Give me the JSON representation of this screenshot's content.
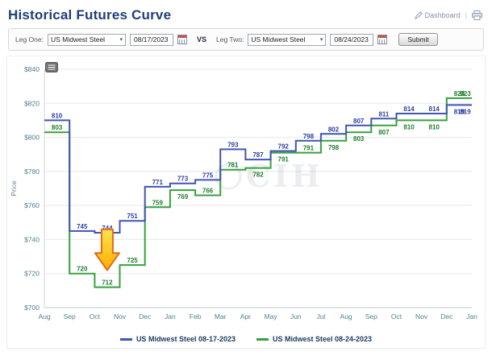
{
  "header": {
    "title": "Historical Futures Curve",
    "dashboard_label": "Dashboard"
  },
  "controls": {
    "leg_one_label": "Leg One:",
    "leg_one_symbol": "US Midwest Steel",
    "leg_one_date": "08/17/2023",
    "vs_label": "VS",
    "leg_two_label": "Leg Two:",
    "leg_two_symbol": "US Midwest Steel",
    "leg_two_date": "08/24/2023",
    "submit_label": "Submit"
  },
  "chart_data": {
    "type": "line",
    "subtype": "step",
    "title": "",
    "xlabel": "",
    "ylabel": "Price",
    "ylim": [
      700,
      840
    ],
    "ytick_step": 20,
    "y_tick_prefix": "$",
    "grid": "horizontal",
    "legend_position": "bottom",
    "watermark": "CIH",
    "categories": [
      "Aug",
      "Sep",
      "Oct",
      "Nov",
      "Dec",
      "Jan",
      "Feb",
      "Mar",
      "Apr",
      "May",
      "Jun",
      "Jul",
      "Aug",
      "Sep",
      "Oct",
      "Nov",
      "Dec",
      "Jan"
    ],
    "series": [
      {
        "name": "US Midwest Steel 08-17-2023",
        "color": "#4054b2",
        "label_color": "#2d3e9f",
        "values": [
          810,
          745,
          744,
          751,
          771,
          773,
          775,
          793,
          787,
          792,
          798,
          802,
          807,
          811,
          814,
          814,
          819,
          819
        ]
      },
      {
        "name": "US Midwest Steel 08-24-2023",
        "color": "#36a13e",
        "label_color": "#1f7d2c",
        "values": [
          803,
          720,
          712,
          725,
          759,
          769,
          766,
          781,
          782,
          791,
          791,
          798,
          803,
          807,
          810,
          810,
          823,
          823
        ]
      }
    ],
    "annotation": {
      "type": "down-arrow-highlight",
      "month_index": 2.5,
      "value_top": 746,
      "value_tip": 722,
      "fill_top": "#ffe34d",
      "fill_bottom": "#ffae00",
      "stroke": "#e2681c"
    }
  }
}
